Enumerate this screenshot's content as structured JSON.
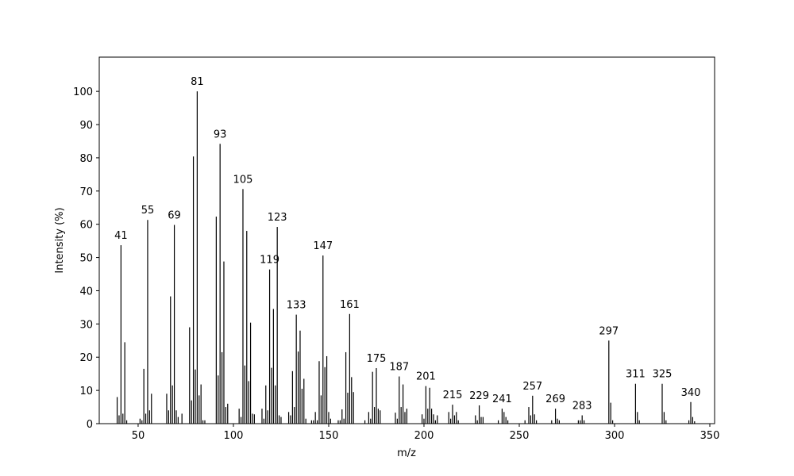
{
  "chart_data": {
    "type": "stick",
    "xlabel": "m/z",
    "ylabel": "Intensity (%)",
    "color": "#000000",
    "x": [
      39,
      40,
      41,
      42,
      43,
      44,
      51,
      52,
      53,
      54,
      55,
      56,
      57,
      65,
      66,
      67,
      68,
      69,
      70,
      71,
      73,
      77,
      78,
      79,
      80,
      81,
      82,
      83,
      84,
      85,
      91,
      92,
      93,
      94,
      95,
      96,
      97,
      103,
      104,
      105,
      106,
      107,
      108,
      109,
      110,
      111,
      115,
      116,
      117,
      118,
      119,
      120,
      121,
      122,
      123,
      124,
      125,
      129,
      130,
      131,
      132,
      133,
      134,
      135,
      136,
      137,
      138,
      141,
      142,
      143,
      144,
      145,
      146,
      147,
      148,
      149,
      150,
      151,
      155,
      156,
      157,
      158,
      159,
      160,
      161,
      162,
      163,
      169,
      171,
      172,
      173,
      174,
      175,
      176,
      177,
      185,
      186,
      187,
      188,
      189,
      190,
      191,
      199,
      200,
      201,
      202,
      203,
      204,
      205,
      206,
      207,
      213,
      214,
      215,
      216,
      217,
      218,
      227,
      228,
      229,
      230,
      231,
      239,
      241,
      242,
      243,
      244,
      253,
      255,
      256,
      257,
      258,
      259,
      267,
      269,
      270,
      271,
      281,
      282,
      283,
      284,
      297,
      298,
      299,
      311,
      312,
      313,
      325,
      326,
      327,
      339,
      340,
      341,
      342
    ],
    "values": [
      8,
      2.5,
      53.7,
      3,
      24.5,
      1,
      1.5,
      1,
      16.5,
      3,
      61.3,
      4,
      9,
      9,
      4,
      38.3,
      11.5,
      59.8,
      4,
      2,
      3,
      29,
      7,
      80.4,
      16.3,
      100,
      8.5,
      11.8,
      1,
      1,
      62.3,
      14.5,
      84.2,
      21.5,
      48.8,
      5,
      6,
      4.5,
      2,
      70.6,
      17.5,
      58,
      12.8,
      30.4,
      3,
      2.8,
      4.5,
      1.5,
      11.5,
      4,
      46.4,
      16.8,
      34.5,
      11.5,
      59.2,
      2.5,
      2,
      3.5,
      2.5,
      15.8,
      5,
      32.8,
      21.7,
      28,
      10.5,
      13.5,
      1.5,
      1,
      1,
      3.5,
      1,
      18.8,
      8.5,
      50.6,
      17,
      20.3,
      3.5,
      1.5,
      1,
      1,
      4.3,
      1.5,
      21.5,
      9.3,
      33,
      14,
      9.5,
      1,
      3.5,
      1.5,
      15.6,
      5,
      16.7,
      4.5,
      4,
      3.3,
      1.5,
      14.2,
      5,
      11.8,
      3.5,
      4.5,
      2.8,
      1.5,
      11.3,
      4.5,
      10.8,
      4.5,
      2.8,
      1,
      2.5,
      3.5,
      1.5,
      5.7,
      2.5,
      3.5,
      1,
      2.5,
      1,
      5.5,
      2,
      2,
      1,
      4.5,
      3.5,
      2,
      1,
      1,
      5,
      2.5,
      8.4,
      2.8,
      1,
      1,
      4.5,
      1.5,
      1,
      1,
      1,
      2.5,
      1,
      25,
      6.3,
      1,
      12,
      3.5,
      1,
      12,
      3.5,
      1,
      1,
      6.5,
      2,
      0.7
    ],
    "annotations": [
      41,
      55,
      69,
      81,
      93,
      105,
      119,
      123,
      133,
      147,
      161,
      175,
      187,
      201,
      215,
      229,
      241,
      257,
      269,
      283,
      297,
      311,
      325,
      340
    ],
    "xlim": [
      29.6,
      352.5
    ],
    "ylim": [
      0,
      110.3
    ],
    "xticks": [
      50,
      100,
      150,
      200,
      250,
      300,
      350
    ],
    "yticks": [
      0,
      10,
      20,
      30,
      40,
      50,
      60,
      70,
      80,
      90,
      100
    ]
  }
}
